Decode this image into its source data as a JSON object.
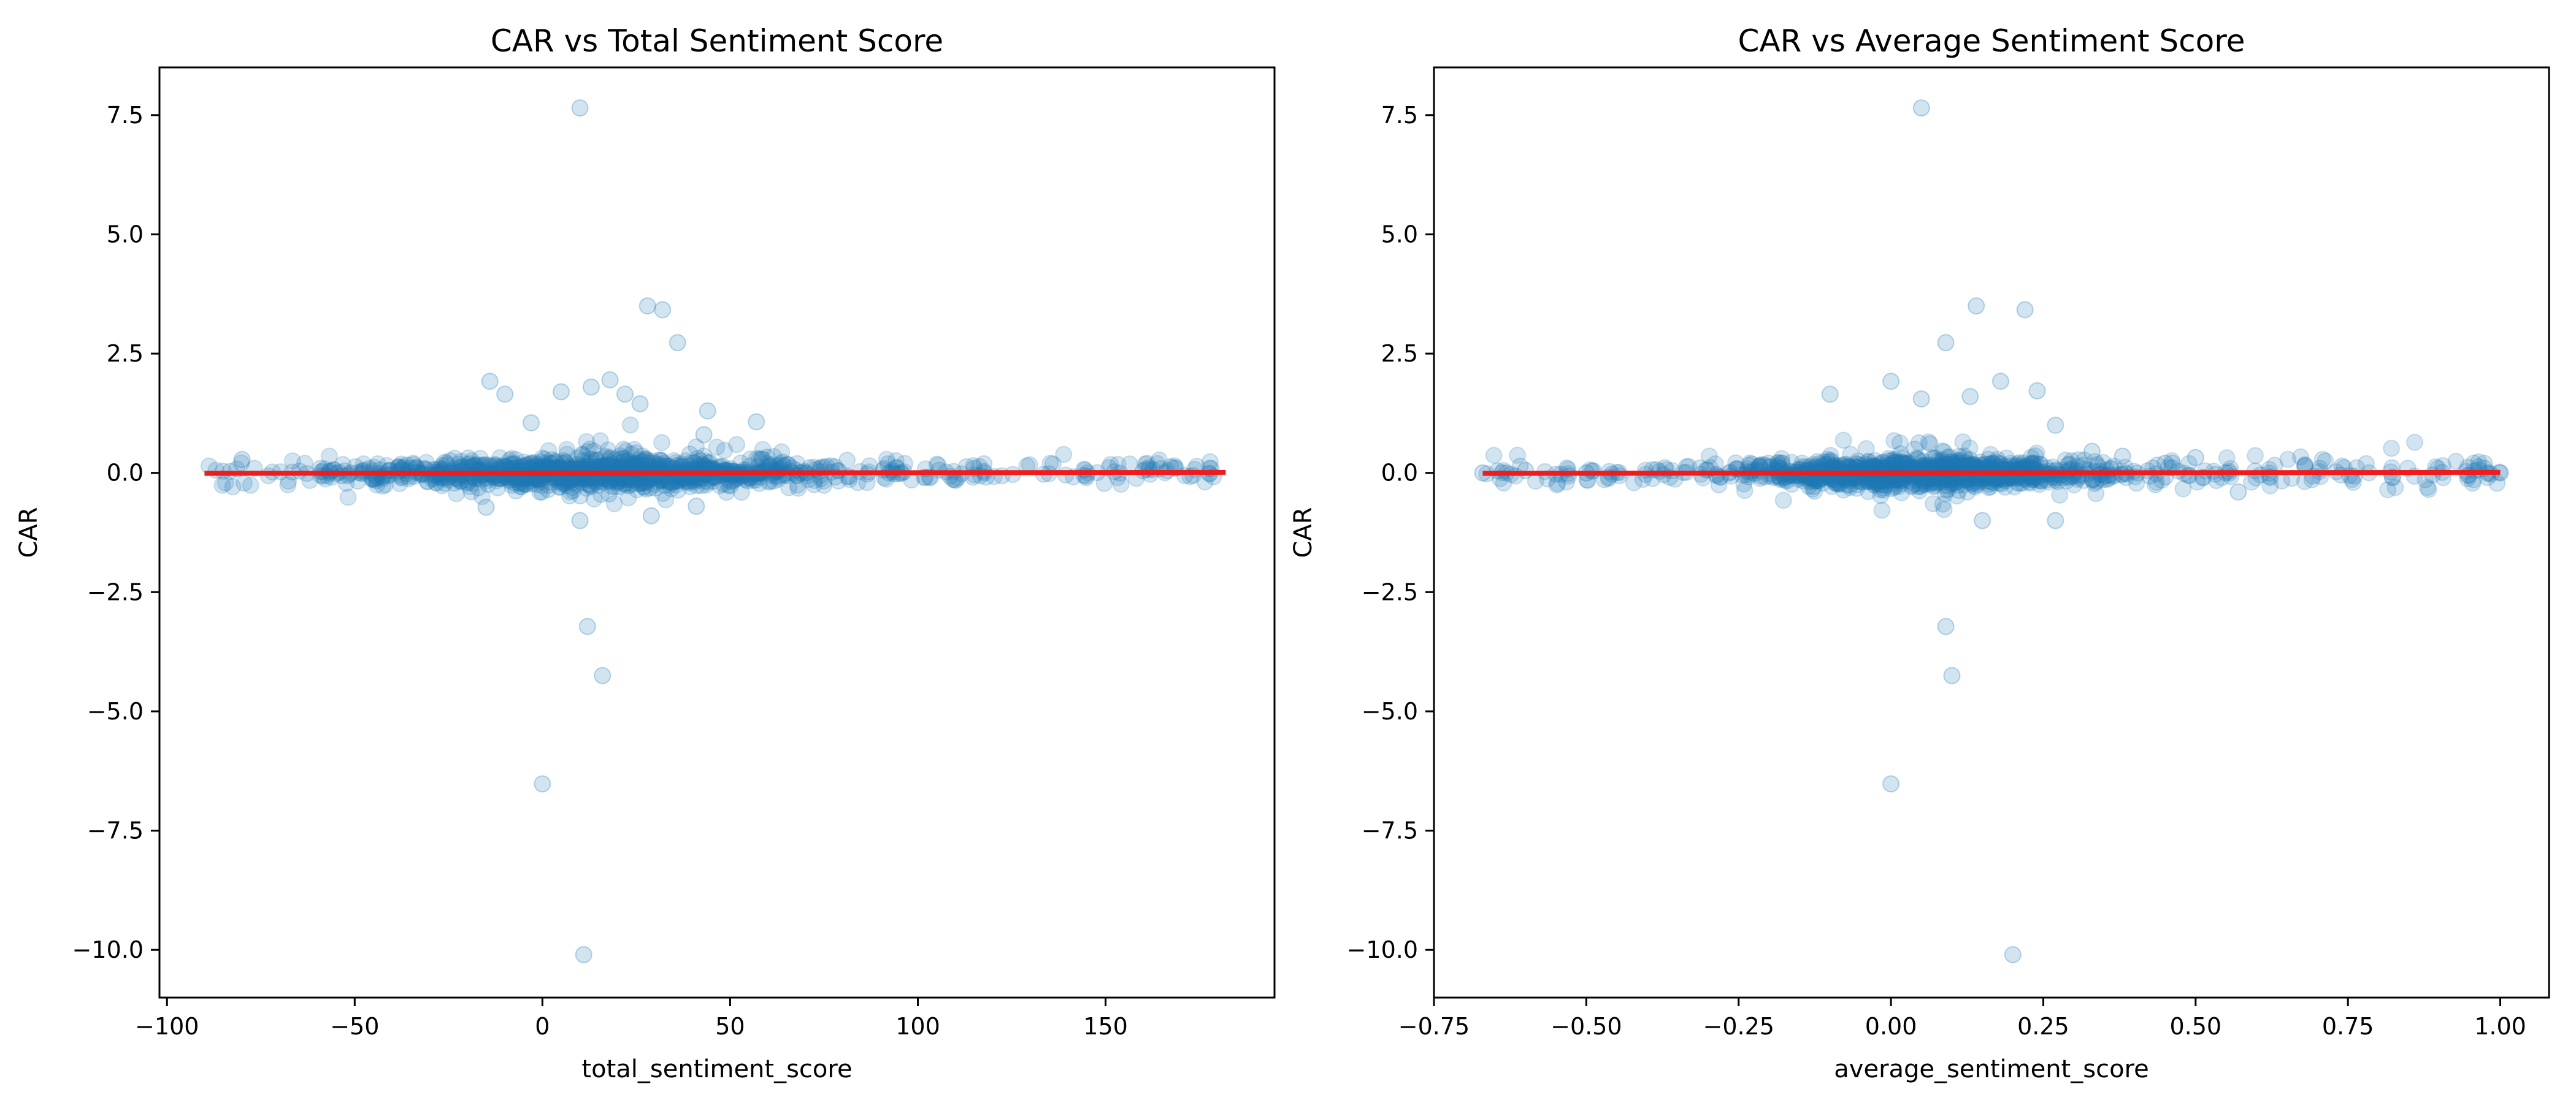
{
  "chart_data": [
    {
      "type": "scatter",
      "title": "CAR vs Total Sentiment Score",
      "xlabel": "total_sentiment_score",
      "ylabel": "CAR",
      "xlim": [
        -102,
        195
      ],
      "ylim": [
        -11.0,
        8.5
      ],
      "xticks": [
        -100,
        -50,
        0,
        50,
        100,
        150
      ],
      "xtick_labels": [
        "−100",
        "−50",
        "0",
        "50",
        "100",
        "150"
      ],
      "yticks": [
        -10.0,
        -7.5,
        -5.0,
        -2.5,
        0.0,
        2.5,
        5.0,
        7.5
      ],
      "ytick_labels": [
        "−10.0",
        "−7.5",
        "−5.0",
        "−2.5",
        "0.0",
        "2.5",
        "5.0",
        "7.5"
      ],
      "grid": false,
      "point_color": "#1f77b4",
      "point_alpha": 0.2,
      "regression_line": {
        "color": "#ee1c1c",
        "x": [
          -90,
          182
        ],
        "y": [
          -0.01,
          0.01
        ]
      },
      "bulk_cloud": {
        "x_range": [
          -90,
          182
        ],
        "x_center": 15,
        "x_spread": 28,
        "y_spread": 0.12,
        "count": 1400
      },
      "outliers": [
        {
          "x": 10,
          "y": 7.65
        },
        {
          "x": 28,
          "y": 3.5
        },
        {
          "x": 32,
          "y": 3.42
        },
        {
          "x": 36,
          "y": 2.73
        },
        {
          "x": -14,
          "y": 1.92
        },
        {
          "x": -10,
          "y": 1.65
        },
        {
          "x": 5,
          "y": 1.7
        },
        {
          "x": 13,
          "y": 1.8
        },
        {
          "x": 18,
          "y": 1.95
        },
        {
          "x": 22,
          "y": 1.65
        },
        {
          "x": 26,
          "y": 1.45
        },
        {
          "x": 44,
          "y": 1.3
        },
        {
          "x": 57,
          "y": 1.07
        },
        {
          "x": -3,
          "y": 1.05
        },
        {
          "x": -80,
          "y": 0.28
        },
        {
          "x": 43,
          "y": 0.8
        },
        {
          "x": 10,
          "y": -1.0
        },
        {
          "x": -15,
          "y": -0.72
        },
        {
          "x": 29,
          "y": -0.9
        },
        {
          "x": 41,
          "y": -0.7
        },
        {
          "x": 12,
          "y": -3.22
        },
        {
          "x": 16,
          "y": -4.25
        },
        {
          "x": 0,
          "y": -6.52
        },
        {
          "x": 11,
          "y": -10.1
        }
      ]
    },
    {
      "type": "scatter",
      "title": "CAR vs Average Sentiment Score",
      "xlabel": "average_sentiment_score",
      "ylabel": "CAR",
      "xlim": [
        -0.75,
        1.08
      ],
      "ylim": [
        -11.0,
        8.5
      ],
      "xticks": [
        -0.75,
        -0.5,
        -0.25,
        0.0,
        0.25,
        0.5,
        0.75,
        1.0
      ],
      "xtick_labels": [
        "−0.75",
        "−0.50",
        "−0.25",
        "0.00",
        "0.25",
        "0.50",
        "0.75",
        "1.00"
      ],
      "yticks": [
        -10.0,
        -7.5,
        -5.0,
        -2.5,
        0.0,
        2.5,
        5.0,
        7.5
      ],
      "ytick_labels": [
        "−10.0",
        "−7.5",
        "−5.0",
        "−2.5",
        "0.0",
        "2.5",
        "5.0",
        "7.5"
      ],
      "grid": false,
      "point_color": "#1f77b4",
      "point_alpha": 0.2,
      "regression_line": {
        "color": "#ee1c1c",
        "x": [
          -0.67,
          1.0
        ],
        "y": [
          -0.01,
          0.01
        ]
      },
      "bulk_cloud": {
        "x_range": [
          -0.67,
          1.0
        ],
        "x_center": 0.05,
        "x_spread": 0.13,
        "y_spread": 0.12,
        "count": 1400
      },
      "outliers": [
        {
          "x": 0.05,
          "y": 7.65
        },
        {
          "x": 0.14,
          "y": 3.5
        },
        {
          "x": 0.22,
          "y": 3.42
        },
        {
          "x": 0.09,
          "y": 2.73
        },
        {
          "x": 0.27,
          "y": 1.0
        },
        {
          "x": 0.0,
          "y": 1.92
        },
        {
          "x": 0.18,
          "y": 1.92
        },
        {
          "x": -0.1,
          "y": 1.65
        },
        {
          "x": 0.05,
          "y": 1.55
        },
        {
          "x": 0.13,
          "y": 1.6
        },
        {
          "x": 0.24,
          "y": 1.72
        },
        {
          "x": 0.33,
          "y": 0.45
        },
        {
          "x": 0.38,
          "y": 0.35
        },
        {
          "x": 0.45,
          "y": 0.2
        },
        {
          "x": 0.5,
          "y": 0.32
        },
        {
          "x": 0.57,
          "y": -0.4
        },
        {
          "x": -0.67,
          "y": 0.0
        },
        {
          "x": -0.6,
          "y": 0.05
        },
        {
          "x": -0.5,
          "y": 0.0
        },
        {
          "x": 1.0,
          "y": 0.0
        },
        {
          "x": 0.27,
          "y": -1.0
        },
        {
          "x": 0.15,
          "y": -1.0
        },
        {
          "x": 0.09,
          "y": -3.22
        },
        {
          "x": 0.1,
          "y": -4.25
        },
        {
          "x": 0.0,
          "y": -6.52
        },
        {
          "x": 0.2,
          "y": -10.1
        }
      ]
    }
  ]
}
